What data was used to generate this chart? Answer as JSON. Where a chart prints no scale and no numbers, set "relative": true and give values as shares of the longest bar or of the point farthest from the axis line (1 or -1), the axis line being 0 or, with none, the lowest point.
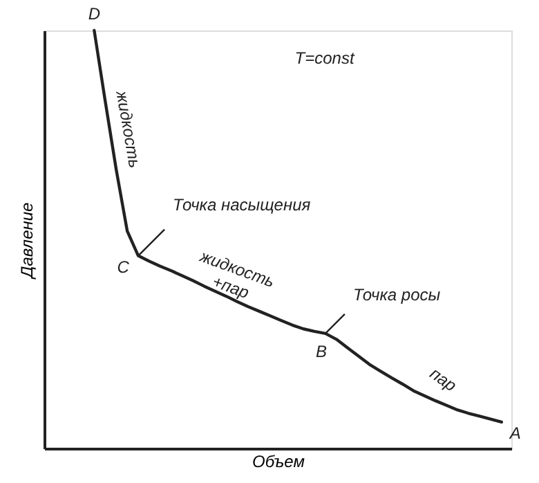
{
  "chart_data": {
    "type": "line",
    "relative": true,
    "xlabel": "Объем",
    "ylabel": "Давление",
    "tick_labels": false,
    "grid": false,
    "marker": "none",
    "line_style": "solid",
    "categories": [
      null,
      null,
      null,
      null,
      null,
      null,
      null,
      null,
      null,
      null,
      null,
      null,
      null,
      null,
      null,
      null,
      null,
      null,
      null,
      null,
      null,
      null,
      null,
      null,
      null,
      null,
      null,
      null,
      null,
      null,
      null,
      null,
      null,
      null,
      null,
      null,
      null,
      null
    ],
    "series": [
      {
        "color": "#222222",
        "values": [
          1.0,
          0.831,
          0.667,
          0.52,
          0.461,
          0.448,
          0.436,
          0.425,
          0.413,
          0.401,
          0.388,
          0.376,
          0.364,
          0.351,
          0.339,
          0.328,
          0.317,
          0.306,
          0.295,
          0.286,
          0.28,
          0.275,
          0.261,
          0.241,
          0.221,
          0.201,
          0.185,
          0.169,
          0.154,
          0.138,
          0.126,
          0.114,
          0.103,
          0.092,
          0.084,
          0.077,
          0.07,
          0.063
        ]
      }
    ],
    "annotations": [
      "T=const",
      "D",
      "жидкость",
      "C",
      "Точка насыщения",
      "жидкость +пар",
      "B",
      "Точка росы",
      "пар",
      "A"
    ]
  }
}
